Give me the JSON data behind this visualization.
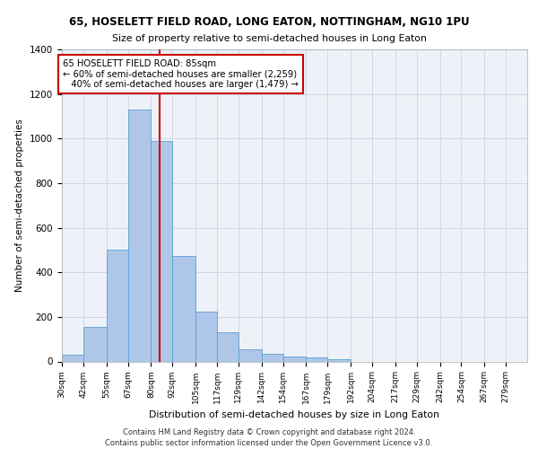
{
  "title1": "65, HOSELETT FIELD ROAD, LONG EATON, NOTTINGHAM, NG10 1PU",
  "title2": "Size of property relative to semi-detached houses in Long Eaton",
  "xlabel": "Distribution of semi-detached houses by size in Long Eaton",
  "ylabel": "Number of semi-detached properties",
  "bins": [
    "30sqm",
    "42sqm",
    "55sqm",
    "67sqm",
    "80sqm",
    "92sqm",
    "105sqm",
    "117sqm",
    "129sqm",
    "142sqm",
    "154sqm",
    "167sqm",
    "179sqm",
    "192sqm",
    "204sqm",
    "217sqm",
    "229sqm",
    "242sqm",
    "254sqm",
    "267sqm",
    "279sqm"
  ],
  "bin_edges": [
    30,
    42,
    55,
    67,
    80,
    92,
    105,
    117,
    129,
    142,
    154,
    167,
    179,
    192,
    204,
    217,
    229,
    242,
    254,
    267,
    279
  ],
  "values": [
    30,
    155,
    500,
    1130,
    990,
    475,
    225,
    130,
    55,
    35,
    22,
    20,
    12,
    0,
    0,
    0,
    0,
    0,
    0,
    0
  ],
  "bar_color": "#aec6e8",
  "bar_edge_color": "#5a9fd4",
  "property_size": 85,
  "vline_color": "#cc0000",
  "annotation_text": "65 HOSELETT FIELD ROAD: 85sqm\n← 60% of semi-detached houses are smaller (2,259)\n   40% of semi-detached houses are larger (1,479) →",
  "annotation_box_color": "#ffffff",
  "annotation_box_edge": "#cc0000",
  "grid_color": "#d0d8e8",
  "background_color": "#eef2f8",
  "footer1": "Contains HM Land Registry data © Crown copyright and database right 2024.",
  "footer2": "Contains public sector information licensed under the Open Government Licence v3.0.",
  "ylim": [
    0,
    1400
  ],
  "yticks": [
    0,
    200,
    400,
    600,
    800,
    1000,
    1200,
    1400
  ]
}
